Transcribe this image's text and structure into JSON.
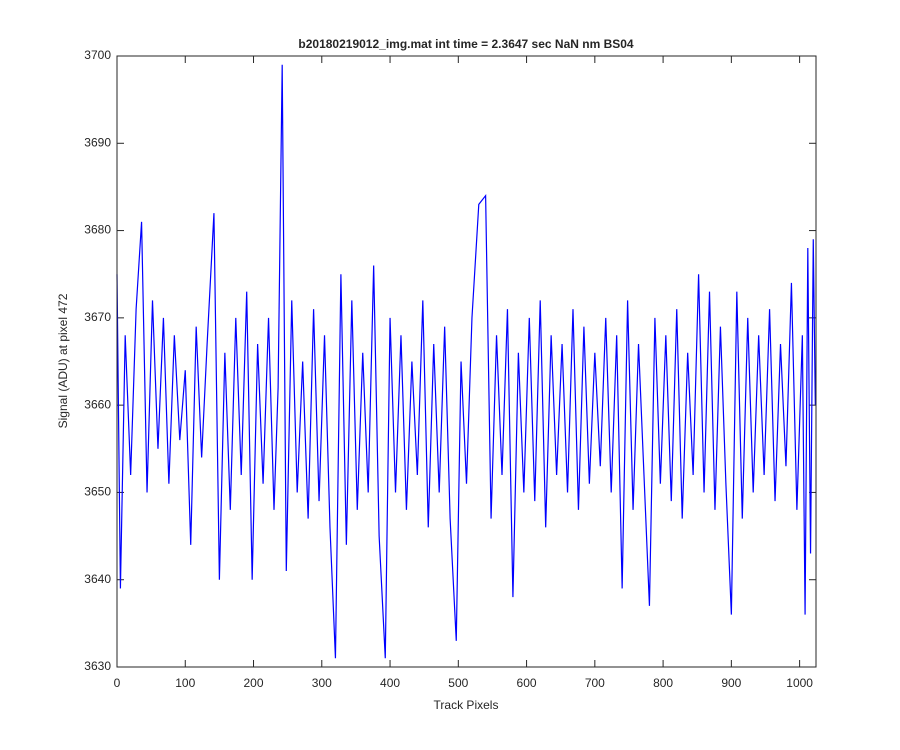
{
  "chart_data": {
    "type": "line",
    "title": "b20180219012_img.mat int time = 2.3647 sec  NaN nm BS04",
    "x_label": "Track Pixels",
    "y_label": "Signal (ADU) at pixel 472",
    "xlim": [
      0,
      1024
    ],
    "ylim": [
      3630,
      3700
    ],
    "xticks": [
      0,
      100,
      200,
      300,
      400,
      500,
      600,
      700,
      800,
      900,
      1000
    ],
    "yticks": [
      3630,
      3640,
      3650,
      3660,
      3670,
      3680,
      3690,
      3700
    ],
    "series": [
      {
        "color": "#0000ff",
        "x": [
          0,
          5,
          12,
          20,
          28,
          36,
          44,
          52,
          60,
          68,
          76,
          84,
          92,
          100,
          108,
          116,
          124,
          132,
          142,
          150,
          158,
          166,
          174,
          182,
          190,
          198,
          206,
          214,
          222,
          230,
          236,
          242,
          248,
          256,
          264,
          272,
          280,
          288,
          296,
          304,
          312,
          320,
          328,
          336,
          344,
          352,
          360,
          368,
          376,
          384,
          393,
          400,
          408,
          416,
          424,
          432,
          440,
          448,
          456,
          464,
          472,
          480,
          488,
          497,
          504,
          512,
          520,
          530,
          540,
          548,
          556,
          564,
          572,
          580,
          588,
          596,
          604,
          612,
          620,
          628,
          636,
          644,
          652,
          660,
          668,
          676,
          684,
          692,
          700,
          708,
          716,
          724,
          732,
          740,
          748,
          756,
          764,
          772,
          780,
          788,
          796,
          804,
          812,
          820,
          828,
          836,
          844,
          852,
          860,
          868,
          876,
          884,
          892,
          900,
          908,
          916,
          924,
          932,
          940,
          948,
          956,
          964,
          972,
          980,
          988,
          996,
          1004,
          1008,
          1012,
          1016,
          1020,
          1023
        ],
        "values": [
          3675,
          3639,
          3668,
          3652,
          3671,
          3681,
          3650,
          3672,
          3655,
          3670,
          3651,
          3668,
          3656,
          3664,
          3644,
          3669,
          3654,
          3667,
          3682,
          3640,
          3666,
          3648,
          3670,
          3652,
          3673,
          3640,
          3667,
          3651,
          3670,
          3648,
          3662,
          3699,
          3641,
          3672,
          3650,
          3665,
          3647,
          3671,
          3649,
          3668,
          3646,
          3631,
          3675,
          3644,
          3672,
          3648,
          3666,
          3650,
          3676,
          3645,
          3631,
          3670,
          3650,
          3668,
          3648,
          3665,
          3652,
          3672,
          3646,
          3667,
          3650,
          3669,
          3647,
          3633,
          3665,
          3651,
          3670,
          3683,
          3684,
          3647,
          3668,
          3652,
          3671,
          3638,
          3666,
          3650,
          3670,
          3649,
          3672,
          3646,
          3668,
          3652,
          3667,
          3650,
          3671,
          3648,
          3669,
          3651,
          3666,
          3653,
          3670,
          3650,
          3668,
          3639,
          3672,
          3648,
          3667,
          3652,
          3637,
          3670,
          3651,
          3668,
          3649,
          3671,
          3647,
          3666,
          3652,
          3675,
          3650,
          3673,
          3648,
          3669,
          3651,
          3636,
          3673,
          3647,
          3670,
          3650,
          3668,
          3652,
          3671,
          3649,
          3667,
          3653,
          3674,
          3648,
          3668,
          3636,
          3678,
          3643,
          3679,
          3660
        ]
      }
    ]
  }
}
